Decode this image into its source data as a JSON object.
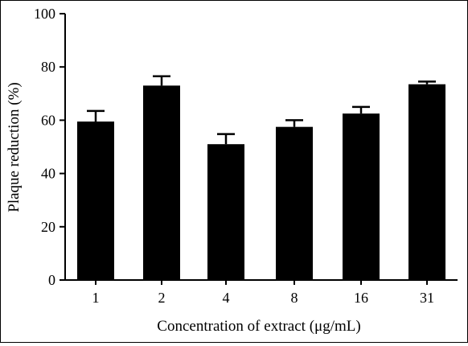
{
  "chart_data": {
    "type": "bar",
    "categories": [
      "1",
      "2",
      "4",
      "8",
      "16",
      "31"
    ],
    "values": [
      59.5,
      73.0,
      51.0,
      57.5,
      62.5,
      73.5
    ],
    "errors": [
      4.0,
      3.5,
      3.8,
      2.5,
      2.5,
      1.0
    ],
    "xlabel": "Concentration of extract (μg/mL)",
    "ylabel": "Plaque reduction (%)",
    "ylim": [
      0,
      100
    ],
    "yticks": [
      "0",
      "20",
      "40",
      "60",
      "80",
      "100"
    ],
    "bar_color": "#000000",
    "grid": false
  }
}
